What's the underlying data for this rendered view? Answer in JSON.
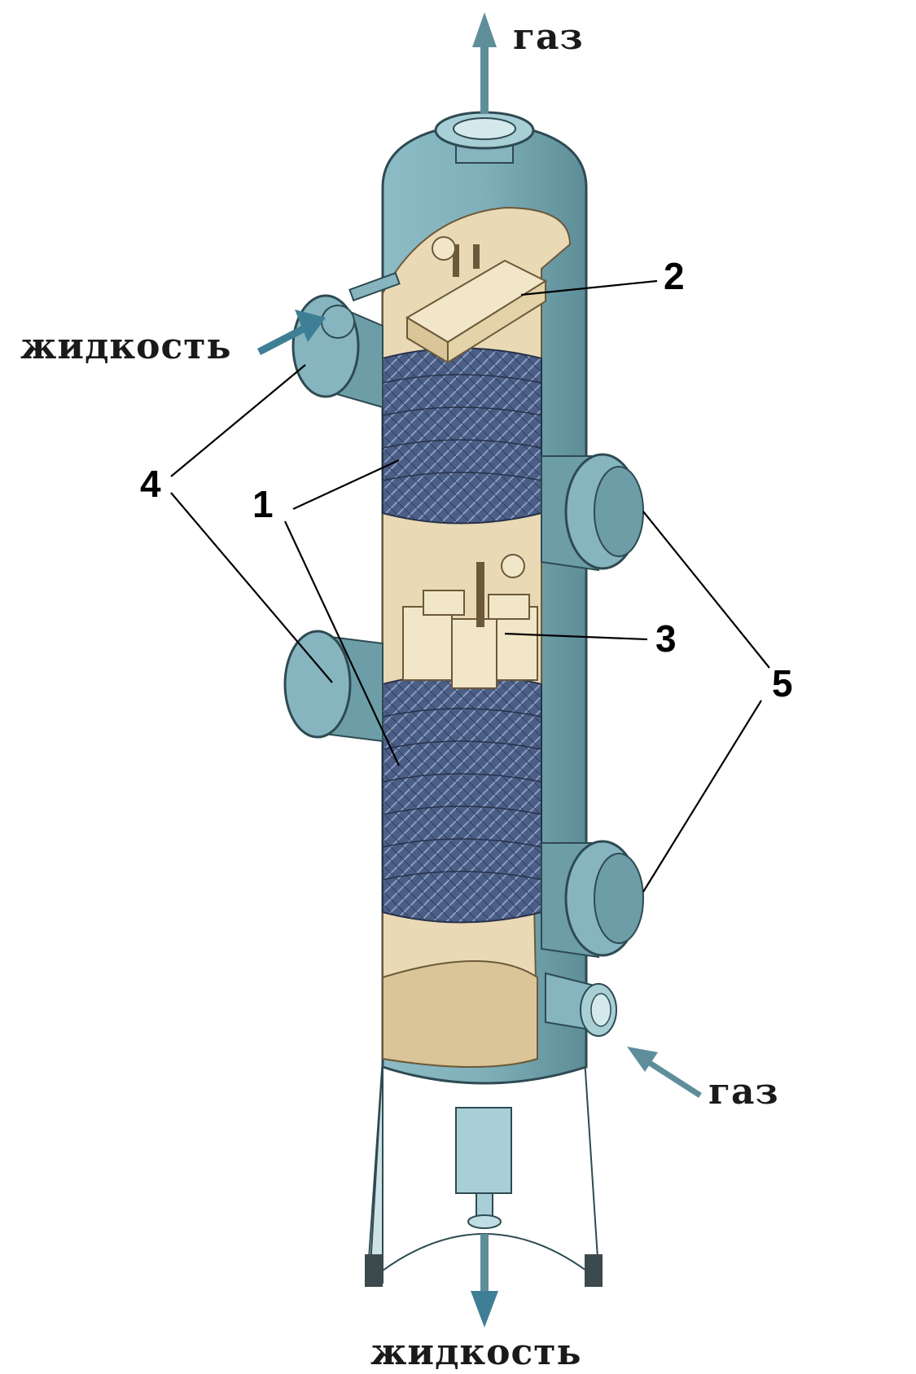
{
  "labels": {
    "gas_out": "газ",
    "liquid_in": "жидкость",
    "gas_in": "газ",
    "liquid_out": "жидкость",
    "num_1": "1",
    "num_2": "2",
    "num_3": "3",
    "num_4": "4",
    "num_5": "5"
  },
  "colors": {
    "shell": "#6d9ea8",
    "interior": "#ead9b5",
    "packing": "#4b5e86",
    "flow_arrow": "#5f8e9b"
  }
}
